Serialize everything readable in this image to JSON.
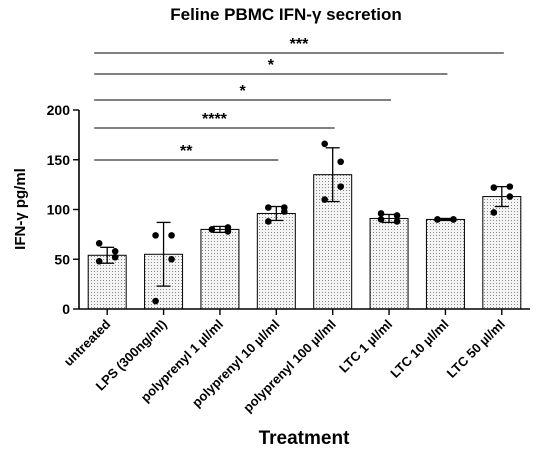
{
  "chart_data": {
    "type": "bar",
    "title": "Feline PBMC IFN-γ secretion",
    "xlabel": "Treatment",
    "ylabel": "IFN-γ pg/ml",
    "ylim": [
      0,
      200
    ],
    "yticks": [
      0,
      50,
      100,
      150,
      200
    ],
    "categories": [
      "untreated",
      "LPS (300ng/ml)",
      "polyprenyl 1 µl/ml",
      "polyprenyl 10 µl/ml",
      "polyprenyl 100 µl/ml",
      "LTC 1 µl/ml",
      "LTC 10 µl/ml",
      "LTC 50 µl/ml"
    ],
    "values": [
      54,
      55,
      80,
      96,
      135,
      91,
      90,
      113
    ],
    "errors": [
      8,
      32,
      3,
      7,
      27,
      4,
      1,
      10
    ],
    "points": [
      [
        66,
        58,
        52,
        48
      ],
      [
        74,
        74,
        50,
        8
      ],
      [
        80,
        82,
        78,
        80
      ],
      [
        102,
        102,
        98,
        88
      ],
      [
        166,
        148,
        123,
        110
      ],
      [
        96,
        94,
        88,
        90
      ],
      [
        90,
        90,
        90,
        90
      ],
      [
        122,
        123,
        113,
        97
      ]
    ],
    "bar_fill": "dotted grey",
    "significance": [
      {
        "label": "***",
        "from": 0,
        "to": 7
      },
      {
        "label": "*",
        "from": 0,
        "to": 6
      },
      {
        "label": "*",
        "from": 0,
        "to": 5
      },
      {
        "label": "****",
        "from": 0,
        "to": 4
      },
      {
        "label": "**",
        "from": 0,
        "to": 3
      }
    ]
  }
}
